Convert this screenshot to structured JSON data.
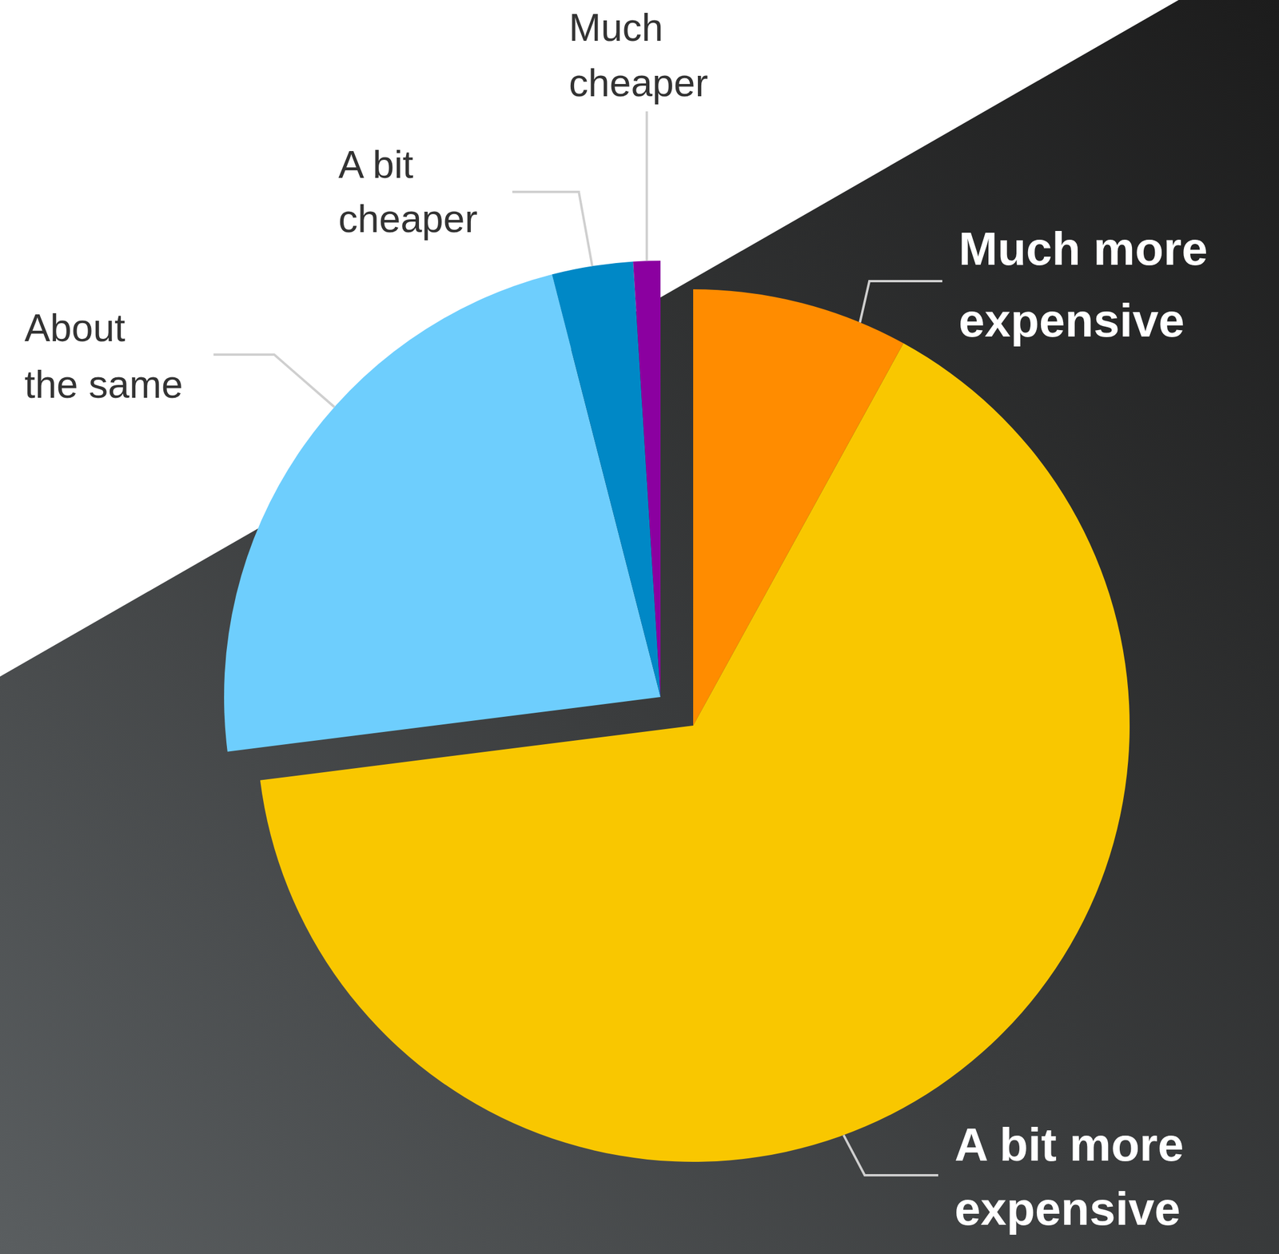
{
  "chart_data": {
    "type": "pie",
    "categories": [
      "Much more expensive",
      "A bit more expensive",
      "About the same",
      "A bit cheaper",
      "Much cheaper"
    ],
    "values": [
      8,
      65,
      23,
      3,
      1
    ],
    "colors": [
      "#ff8c00",
      "#f9c700",
      "#6ecefd",
      "#0088c6",
      "#8b00a0"
    ]
  }
}
